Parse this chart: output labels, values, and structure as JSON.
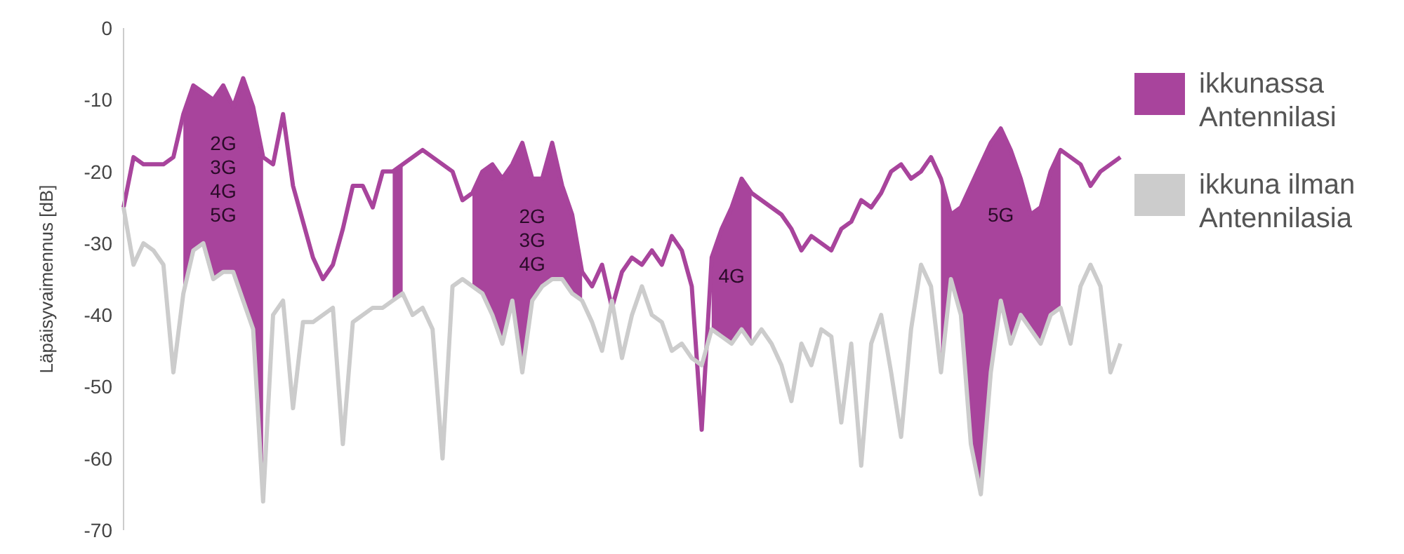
{
  "chart_data": {
    "type": "line",
    "ylabel": "Läpäisyvaimennus [dB]",
    "ylim": [
      -70,
      0
    ],
    "yticks": [
      -70,
      -60,
      -50,
      -40,
      -30,
      -20,
      -10,
      0
    ],
    "grid": false,
    "legend": "right",
    "annotations": [
      "2G\n3G\n4G\n5G",
      "2G\n3G\n4G",
      "4G",
      "5G"
    ],
    "categories": [
      null,
      null,
      null,
      null,
      null,
      null,
      null,
      null,
      null,
      null,
      null,
      null,
      null,
      null,
      null,
      null,
      null,
      null,
      null,
      null,
      null,
      null,
      null,
      null,
      null,
      null,
      null,
      null,
      null,
      null,
      null,
      null,
      null,
      null,
      null,
      null,
      null,
      null,
      null,
      null,
      null,
      null,
      null,
      null,
      null,
      null,
      null,
      null,
      null,
      null,
      null,
      null,
      null,
      null,
      null,
      null,
      null,
      null,
      null,
      null,
      null,
      null,
      null,
      null,
      null,
      null,
      null,
      null,
      null,
      null,
      null,
      null,
      null,
      null,
      null,
      null,
      null,
      null,
      null,
      null,
      null,
      null,
      null,
      null,
      null,
      null,
      null,
      null,
      null,
      null,
      null,
      null,
      null,
      null,
      null,
      null,
      null,
      null,
      null,
      null,
      null
    ],
    "series": [
      {
        "name": "ikkunassa Antennilasi",
        "color": "#a8449c",
        "values": [
          -25,
          -18,
          -19,
          -19,
          -19,
          -18,
          -12,
          -8,
          -9,
          -10,
          -8,
          -11,
          -7,
          -11,
          -18,
          -19,
          -12,
          -22,
          -27,
          -32,
          -35,
          -33,
          -28,
          -22,
          -22,
          -25,
          -20,
          -20,
          -19,
          -18,
          -17,
          -18,
          -19,
          -20,
          -24,
          -23,
          -20,
          -19,
          -21,
          -19,
          -16,
          -21,
          -21,
          -16,
          -22,
          -26,
          -34,
          -36,
          -33,
          -39,
          -34,
          -32,
          -33,
          -31,
          -33,
          -29,
          -31,
          -36,
          -56,
          -32,
          -28,
          -25,
          -21,
          -23,
          -24,
          -25,
          -26,
          -28,
          -31,
          -29,
          -30,
          -31,
          -28,
          -27,
          -24,
          -25,
          -23,
          -20,
          -19,
          -21,
          -20,
          -18,
          -21,
          -26,
          -25,
          -22,
          -19,
          -16,
          -14,
          -17,
          -21,
          -26,
          -25,
          -20,
          -17,
          -18,
          -19,
          -22,
          -20,
          -19,
          -18
        ],
        "upper": [
          null,
          null,
          null,
          null,
          null,
          null,
          -12,
          -8,
          -9,
          -10,
          -8,
          -11,
          -7,
          -11,
          -18,
          null,
          null,
          null,
          null,
          null,
          null,
          null,
          null,
          null,
          null,
          null,
          null,
          -20,
          -19,
          null,
          null,
          null,
          null,
          null,
          null,
          -23,
          -20,
          -19,
          -21,
          -19,
          -16,
          -21,
          -21,
          -16,
          -22,
          -26,
          -34,
          null,
          null,
          null,
          null,
          null,
          null,
          null,
          null,
          null,
          null,
          null,
          null,
          -32,
          -28,
          -25,
          -21,
          -23,
          null,
          null,
          null,
          null,
          null,
          null,
          null,
          null,
          null,
          null,
          null,
          null,
          null,
          null,
          null,
          null,
          null,
          null,
          -21,
          -26,
          -25,
          -22,
          -19,
          -16,
          -14,
          -17,
          -21,
          -26,
          -25,
          -20,
          -17,
          null,
          null,
          null,
          null,
          null,
          null
        ],
        "lower": [
          null,
          null,
          null,
          null,
          null,
          null,
          -37,
          -31,
          -30,
          -35,
          -34,
          -34,
          -38,
          -42,
          -66,
          null,
          null,
          null,
          null,
          null,
          null,
          null,
          null,
          null,
          null,
          null,
          null,
          -38,
          -37,
          null,
          null,
          null,
          null,
          null,
          null,
          -36,
          -37,
          -40,
          -44,
          -38,
          -48,
          -38,
          -36,
          -35,
          -35,
          -37,
          -38,
          null,
          null,
          null,
          null,
          null,
          null,
          null,
          null,
          null,
          null,
          null,
          null,
          -42,
          -43,
          -44,
          -42,
          -44,
          null,
          null,
          null,
          null,
          null,
          null,
          null,
          null,
          null,
          null,
          null,
          null,
          null,
          null,
          null,
          null,
          null,
          null,
          -48,
          -35,
          -40,
          -58,
          -65,
          -48,
          -38,
          -44,
          -40,
          -42,
          -44,
          -40,
          -39,
          null,
          null,
          null,
          null,
          null,
          null
        ]
      },
      {
        "name": "ikkuna ilman Antennilasia",
        "color": "#cccccc",
        "values": [
          -25,
          -33,
          -30,
          -31,
          -33,
          -48,
          -37,
          -31,
          -30,
          -35,
          -34,
          -34,
          -38,
          -42,
          -66,
          -40,
          -38,
          -53,
          -41,
          -41,
          -40,
          -39,
          -58,
          -41,
          -40,
          -39,
          -39,
          -38,
          -37,
          -40,
          -39,
          -42,
          -60,
          -36,
          -35,
          -36,
          -37,
          -40,
          -44,
          -38,
          -48,
          -38,
          -36,
          -35,
          -35,
          -37,
          -38,
          -41,
          -45,
          -38,
          -46,
          -40,
          -36,
          -40,
          -41,
          -45,
          -44,
          -46,
          -47,
          -42,
          -43,
          -44,
          -42,
          -44,
          -42,
          -44,
          -47,
          -52,
          -44,
          -47,
          -42,
          -43,
          -55,
          -44,
          -61,
          -44,
          -40,
          -48,
          -57,
          -42,
          -33,
          -36,
          -48,
          -35,
          -40,
          -58,
          -65,
          -48,
          -38,
          -44,
          -40,
          -42,
          -44,
          -40,
          -39,
          -44,
          -36,
          -33,
          -36,
          -48,
          -44
        ]
      }
    ]
  }
}
